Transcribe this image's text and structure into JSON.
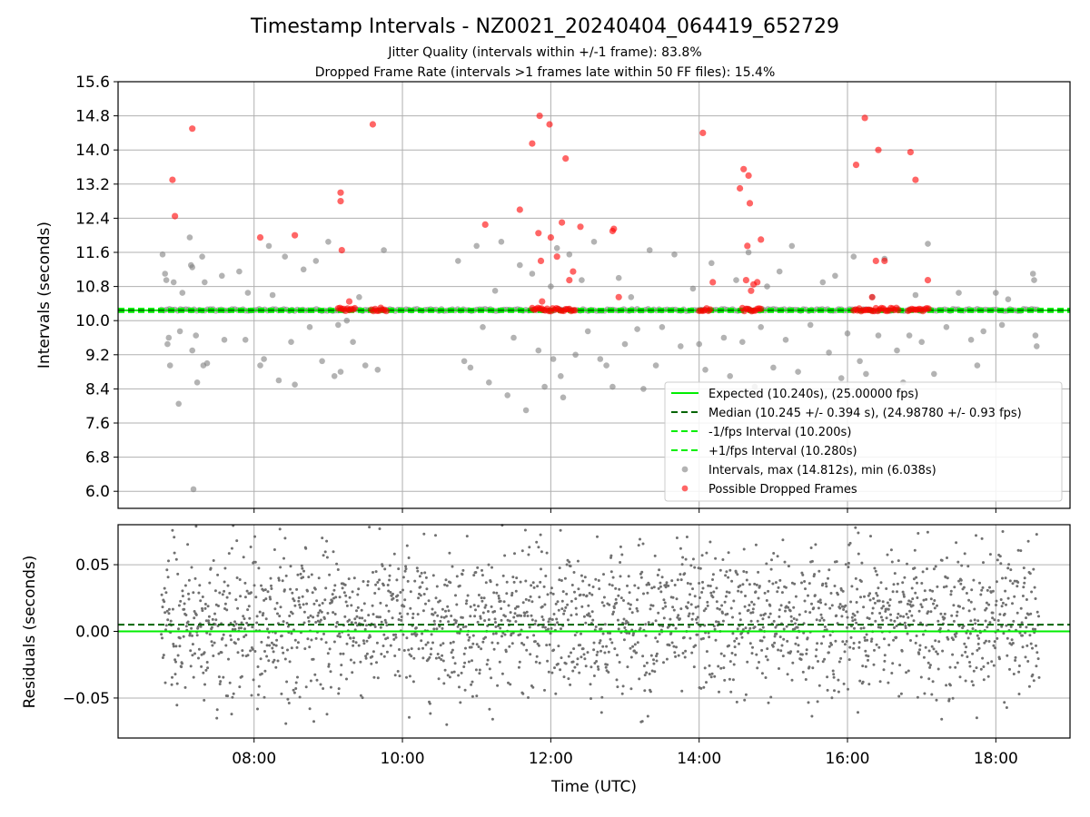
{
  "figure": {
    "title": "Timestamp Intervals - NZ0021_20240404_064419_652729",
    "subtitle_line1": "Jitter Quality (intervals within +/-1 frame): 83.8%",
    "subtitle_line2": "Dropped Frame Rate (intervals >1 frames late within 50 FF files): 15.4%"
  },
  "chart_data": [
    {
      "type": "scatter",
      "panel": "intervals",
      "ylabel": "Intervals (seconds)",
      "xlabel": "",
      "xlim": [
        "06:10",
        "19:00"
      ],
      "ylim": [
        5.6,
        15.6
      ],
      "yticks": [
        "6.0",
        "6.8",
        "7.6",
        "8.4",
        "9.2",
        "10.0",
        "10.8",
        "11.6",
        "12.4",
        "13.2",
        "14.0",
        "14.8",
        "15.6"
      ],
      "grid": true,
      "legend_position": "lower-right",
      "reference_lines": [
        {
          "name": "Expected (10.240s), (25.00000 fps)",
          "y": 10.24,
          "style": "solid",
          "color": "#00ee00"
        },
        {
          "name": "Median (10.245 +/- 0.394 s), (24.98780 +/- 0.93 fps)",
          "y": 10.245,
          "style": "dashed",
          "color": "#006400"
        },
        {
          "name": "-1/fps Interval (10.200s)",
          "y": 10.2,
          "style": "dashed",
          "color": "#00ee00"
        },
        {
          "name": "+1/fps Interval (10.280s)",
          "y": 10.28,
          "style": "dashed",
          "color": "#00ee00"
        }
      ],
      "series": [
        {
          "name": "Intervals, max (14.812s), min (6.038s)",
          "color": "#808080",
          "points": [
            [
              "06:46",
              11.55
            ],
            [
              "06:48",
              11.1
            ],
            [
              "06:49",
              10.95
            ],
            [
              "06:50",
              9.45
            ],
            [
              "06:51",
              9.6
            ],
            [
              "06:52",
              8.95
            ],
            [
              "06:55",
              10.9
            ],
            [
              "06:59",
              8.05
            ],
            [
              "07:00",
              9.75
            ],
            [
              "07:02",
              10.65
            ],
            [
              "07:08",
              11.95
            ],
            [
              "07:09",
              11.3
            ],
            [
              "07:10",
              11.25
            ],
            [
              "07:10",
              9.3
            ],
            [
              "07:11",
              6.05
            ],
            [
              "07:13",
              9.65
            ],
            [
              "07:14",
              8.55
            ],
            [
              "07:18",
              11.5
            ],
            [
              "07:19",
              8.95
            ],
            [
              "07:20",
              10.9
            ],
            [
              "07:22",
              9.0
            ],
            [
              "07:34",
              11.05
            ],
            [
              "07:36",
              9.55
            ],
            [
              "07:48",
              11.15
            ],
            [
              "07:53",
              9.55
            ],
            [
              "07:55",
              10.65
            ],
            [
              "08:05",
              8.95
            ],
            [
              "08:08",
              9.1
            ],
            [
              "08:12",
              11.75
            ],
            [
              "08:15",
              10.6
            ],
            [
              "08:20",
              8.6
            ],
            [
              "08:25",
              11.5
            ],
            [
              "08:30",
              9.5
            ],
            [
              "08:33",
              8.5
            ],
            [
              "08:40",
              11.2
            ],
            [
              "08:45",
              9.85
            ],
            [
              "08:50",
              11.4
            ],
            [
              "08:55",
              9.05
            ],
            [
              "09:00",
              11.85
            ],
            [
              "09:05",
              8.7
            ],
            [
              "09:08",
              9.9
            ],
            [
              "09:10",
              8.8
            ],
            [
              "09:15",
              10.0
            ],
            [
              "09:20",
              9.5
            ],
            [
              "09:25",
              10.55
            ],
            [
              "09:30",
              8.95
            ],
            [
              "09:40",
              8.85
            ],
            [
              "09:45",
              11.65
            ],
            [
              "10:45",
              11.4
            ],
            [
              "10:50",
              9.05
            ],
            [
              "10:55",
              8.9
            ],
            [
              "11:00",
              11.75
            ],
            [
              "11:05",
              9.85
            ],
            [
              "11:10",
              8.55
            ],
            [
              "11:15",
              10.7
            ],
            [
              "11:20",
              11.85
            ],
            [
              "11:25",
              8.25
            ],
            [
              "11:30",
              9.6
            ],
            [
              "11:35",
              11.3
            ],
            [
              "11:40",
              7.9
            ],
            [
              "11:45",
              11.1
            ],
            [
              "11:50",
              9.3
            ],
            [
              "11:55",
              8.45
            ],
            [
              "12:00",
              10.8
            ],
            [
              "12:02",
              9.1
            ],
            [
              "12:05",
              11.7
            ],
            [
              "12:08",
              8.7
            ],
            [
              "12:10",
              8.2
            ],
            [
              "12:15",
              11.55
            ],
            [
              "12:20",
              9.2
            ],
            [
              "12:25",
              10.95
            ],
            [
              "12:30",
              9.75
            ],
            [
              "12:35",
              11.85
            ],
            [
              "12:40",
              9.1
            ],
            [
              "12:45",
              8.95
            ],
            [
              "12:50",
              8.45
            ],
            [
              "12:55",
              11.0
            ],
            [
              "13:00",
              9.45
            ],
            [
              "13:05",
              10.55
            ],
            [
              "13:10",
              9.8
            ],
            [
              "13:15",
              8.4
            ],
            [
              "13:20",
              11.65
            ],
            [
              "13:25",
              8.95
            ],
            [
              "13:30",
              9.85
            ],
            [
              "13:40",
              11.55
            ],
            [
              "13:45",
              9.4
            ],
            [
              "13:55",
              10.75
            ],
            [
              "14:00",
              9.45
            ],
            [
              "14:05",
              8.85
            ],
            [
              "14:10",
              11.35
            ],
            [
              "14:20",
              9.6
            ],
            [
              "14:25",
              8.7
            ],
            [
              "14:30",
              10.95
            ],
            [
              "14:35",
              9.5
            ],
            [
              "14:40",
              11.6
            ],
            [
              "14:45",
              8.45
            ],
            [
              "14:50",
              9.85
            ],
            [
              "14:55",
              10.8
            ],
            [
              "15:00",
              8.9
            ],
            [
              "15:05",
              11.15
            ],
            [
              "15:10",
              9.55
            ],
            [
              "15:15",
              11.75
            ],
            [
              "15:20",
              8.8
            ],
            [
              "15:30",
              9.9
            ],
            [
              "15:40",
              10.9
            ],
            [
              "15:45",
              9.25
            ],
            [
              "15:50",
              11.05
            ],
            [
              "15:55",
              8.65
            ],
            [
              "16:00",
              9.7
            ],
            [
              "16:05",
              11.5
            ],
            [
              "16:10",
              9.05
            ],
            [
              "16:15",
              8.75
            ],
            [
              "16:20",
              10.55
            ],
            [
              "16:25",
              9.65
            ],
            [
              "16:30",
              11.45
            ],
            [
              "16:40",
              9.3
            ],
            [
              "16:45",
              8.55
            ],
            [
              "16:50",
              9.65
            ],
            [
              "16:55",
              10.6
            ],
            [
              "17:00",
              9.5
            ],
            [
              "17:05",
              11.8
            ],
            [
              "17:10",
              8.75
            ],
            [
              "17:20",
              9.85
            ],
            [
              "17:30",
              10.65
            ],
            [
              "17:40",
              9.55
            ],
            [
              "17:45",
              8.95
            ],
            [
              "17:50",
              9.75
            ],
            [
              "18:00",
              10.65
            ],
            [
              "18:05",
              9.9
            ],
            [
              "18:10",
              10.5
            ],
            [
              "18:30",
              11.1
            ],
            [
              "18:31",
              10.95
            ],
            [
              "18:32",
              9.65
            ],
            [
              "18:33",
              9.4
            ]
          ]
        },
        {
          "name": "Possible Dropped Frames",
          "color": "#ff0000",
          "points": [
            [
              "06:54",
              13.3
            ],
            [
              "06:56",
              12.45
            ],
            [
              "07:10",
              14.5
            ],
            [
              "08:05",
              11.95
            ],
            [
              "08:33",
              12.0
            ],
            [
              "09:10",
              13.0
            ],
            [
              "09:10",
              12.8
            ],
            [
              "09:11",
              11.65
            ],
            [
              "09:17",
              10.45
            ],
            [
              "09:36",
              14.6
            ],
            [
              "11:07",
              12.25
            ],
            [
              "11:35",
              12.6
            ],
            [
              "11:45",
              14.15
            ],
            [
              "11:50",
              12.05
            ],
            [
              "11:51",
              14.8
            ],
            [
              "11:52",
              11.4
            ],
            [
              "11:53",
              10.45
            ],
            [
              "11:59",
              14.6
            ],
            [
              "12:00",
              11.95
            ],
            [
              "12:05",
              11.5
            ],
            [
              "12:09",
              12.3
            ],
            [
              "12:12",
              13.8
            ],
            [
              "12:15",
              10.95
            ],
            [
              "12:18",
              11.15
            ],
            [
              "12:24",
              12.2
            ],
            [
              "12:50",
              12.1
            ],
            [
              "12:51",
              12.15
            ],
            [
              "12:55",
              10.55
            ],
            [
              "14:03",
              14.4
            ],
            [
              "14:11",
              10.9
            ],
            [
              "14:33",
              13.1
            ],
            [
              "14:36",
              13.55
            ],
            [
              "14:38",
              10.95
            ],
            [
              "14:39",
              11.75
            ],
            [
              "14:40",
              13.4
            ],
            [
              "14:41",
              12.75
            ],
            [
              "14:42",
              10.7
            ],
            [
              "14:44",
              10.85
            ],
            [
              "14:47",
              10.9
            ],
            [
              "14:50",
              11.9
            ],
            [
              "16:07",
              13.65
            ],
            [
              "16:14",
              14.75
            ],
            [
              "16:20",
              10.55
            ],
            [
              "16:23",
              11.4
            ],
            [
              "16:25",
              14.0
            ],
            [
              "16:30",
              11.4
            ],
            [
              "16:51",
              13.95
            ],
            [
              "16:55",
              13.3
            ],
            [
              "17:05",
              10.95
            ]
          ]
        }
      ],
      "dropped_clusters": [
        {
          "start": "09:08",
          "end": "09:22",
          "y": 10.26
        },
        {
          "start": "09:35",
          "end": "09:47",
          "y": 10.26
        },
        {
          "start": "11:45",
          "end": "12:20",
          "y": 10.26
        },
        {
          "start": "14:00",
          "end": "14:10",
          "y": 10.26
        },
        {
          "start": "14:35",
          "end": "14:50",
          "y": 10.26
        },
        {
          "start": "16:05",
          "end": "16:42",
          "y": 10.26
        },
        {
          "start": "16:49",
          "end": "17:06",
          "y": 10.26
        }
      ]
    },
    {
      "type": "scatter",
      "panel": "residuals",
      "ylabel": "Residuals (seconds)",
      "xlabel": "Time (UTC)",
      "xlim": [
        "06:10",
        "19:00"
      ],
      "xticks": [
        "08:00",
        "10:00",
        "12:00",
        "14:00",
        "16:00",
        "18:00"
      ],
      "ylim": [
        -0.08,
        0.08
      ],
      "yticks": [
        "0.05",
        "0.00",
        "−0.05"
      ],
      "grid": true,
      "reference_lines": [
        {
          "name": "Expected",
          "y": 0.0,
          "style": "solid",
          "color": "#00ee00"
        },
        {
          "name": "Median",
          "y": 0.005,
          "style": "dashed",
          "color": "#006400"
        }
      ],
      "series": [
        {
          "name": "Residuals",
          "color": "#808080",
          "time_range": [
            "06:45",
            "18:35"
          ],
          "sample_count": 2200,
          "spread": 0.027,
          "range": [
            -0.07,
            0.08
          ]
        }
      ]
    }
  ],
  "legend": {
    "items": [
      {
        "label": "Expected (10.240s), (25.00000 fps)",
        "kind": "solid-line",
        "color": "#00ee00"
      },
      {
        "label": "Median (10.245 +/- 0.394 s), (24.98780 +/- 0.93 fps)",
        "kind": "dashed-line",
        "color": "#006400"
      },
      {
        "label": "-1/fps Interval (10.200s)",
        "kind": "dashed-line",
        "color": "#00ee00"
      },
      {
        "label": "+1/fps Interval (10.280s)",
        "kind": "dashed-line",
        "color": "#00ee00"
      },
      {
        "label": "Intervals, max (14.812s), min (6.038s)",
        "kind": "dot",
        "color": "#808080"
      },
      {
        "label": "Possible Dropped Frames",
        "kind": "dot",
        "color": "#ff0000"
      }
    ]
  }
}
